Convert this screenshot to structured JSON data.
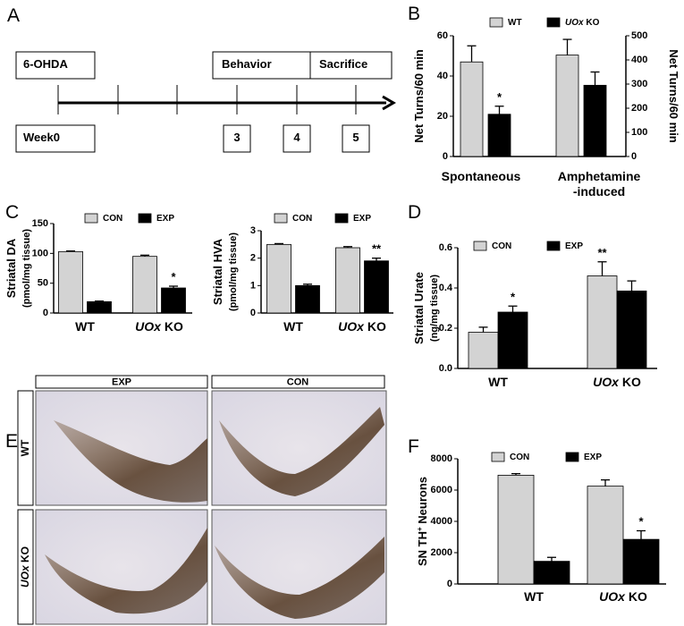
{
  "panel_labels": [
    "A",
    "B",
    "C",
    "D",
    "E",
    "F"
  ],
  "timeline": {
    "events": [
      "6-OHDA",
      "Behavior",
      "Sacrifice"
    ],
    "weeks": [
      "Week0",
      "3",
      "4",
      "5"
    ]
  },
  "micrographs": {
    "columns": [
      "EXP",
      "CON"
    ],
    "rows": [
      "WT",
      "UOx KO"
    ]
  },
  "chart_data": [
    {
      "type": "bar",
      "ylabel": "Net Turns/60 min",
      "y2label": "Net Turns/60 min",
      "categories": [
        "Spontaneous",
        "Amphetamine\n-induced"
      ],
      "category_axis": [
        "y",
        "y2"
      ],
      "series": [
        {
          "name": "WT",
          "color": "#d3d3d3",
          "values": [
            47,
            420
          ],
          "errors": [
            8,
            65
          ],
          "stars": [
            null,
            null
          ]
        },
        {
          "name": "UOx KO",
          "color": "#000000",
          "values": [
            21,
            295
          ],
          "errors": [
            4,
            55
          ],
          "stars": [
            "*",
            null
          ]
        }
      ],
      "ylim": [
        0,
        60
      ],
      "yticks": [
        0,
        20,
        40,
        60
      ],
      "y2lim": [
        0,
        500
      ],
      "y2ticks": [
        0,
        100,
        200,
        300,
        400,
        500
      ]
    },
    {
      "type": "bar",
      "ylabel": [
        "Striatal DA",
        "(pmol/mg tissue)"
      ],
      "categories": [
        "WT",
        "UOx KO"
      ],
      "series": [
        {
          "name": "CON",
          "color": "#d3d3d3",
          "values": [
            103,
            95
          ],
          "errors": [
            1,
            2
          ],
          "stars": [
            null,
            null
          ]
        },
        {
          "name": "EXP",
          "color": "#000000",
          "values": [
            19,
            42
          ],
          "errors": [
            1,
            3
          ],
          "stars": [
            null,
            "*"
          ]
        }
      ],
      "ylim": [
        0,
        150
      ],
      "yticks": [
        0,
        50,
        100,
        150
      ]
    },
    {
      "type": "bar",
      "ylabel": [
        "Striatal HVA",
        "(pmol/mg tissue)"
      ],
      "categories": [
        "WT",
        "UOx KO"
      ],
      "series": [
        {
          "name": "CON",
          "color": "#d3d3d3",
          "values": [
            2.5,
            2.38
          ],
          "errors": [
            0.03,
            0.04
          ],
          "stars": [
            null,
            null
          ]
        },
        {
          "name": "EXP",
          "color": "#000000",
          "values": [
            1.0,
            1.9
          ],
          "errors": [
            0.05,
            0.1
          ],
          "stars": [
            null,
            "**"
          ]
        }
      ],
      "ylim": [
        0,
        3
      ],
      "yticks": [
        0,
        1,
        2,
        3
      ]
    },
    {
      "type": "bar",
      "ylabel": [
        "Striatal Urate",
        "(ng/mg tissue)"
      ],
      "categories": [
        "WT",
        "UOx KO"
      ],
      "series": [
        {
          "name": "CON",
          "color": "#d3d3d3",
          "values": [
            0.18,
            0.46
          ],
          "errors": [
            0.025,
            0.07
          ],
          "stars": [
            null,
            "**"
          ]
        },
        {
          "name": "EXP",
          "color": "#000000",
          "values": [
            0.28,
            0.385
          ],
          "errors": [
            0.03,
            0.05
          ],
          "stars": [
            "*",
            null
          ]
        }
      ],
      "ylim": [
        0,
        0.6
      ],
      "yticks": [
        {
          "value": 0,
          "label": "0.0"
        },
        0.2,
        0.4,
        0.6
      ]
    },
    {
      "type": "bar",
      "ylabel": "SN TH+ Neurons",
      "categories": [
        "WT",
        "UOx KO"
      ],
      "series": [
        {
          "name": "CON",
          "color": "#d3d3d3",
          "values": [
            6950,
            6250
          ],
          "errors": [
            100,
            400
          ],
          "stars": [
            null,
            null
          ]
        },
        {
          "name": "EXP",
          "color": "#000000",
          "values": [
            1450,
            2850
          ],
          "errors": [
            250,
            550
          ],
          "stars": [
            null,
            "*"
          ]
        }
      ],
      "ylim": [
        0,
        8000
      ],
      "yticks": [
        0,
        2000,
        4000,
        6000,
        8000
      ]
    }
  ]
}
